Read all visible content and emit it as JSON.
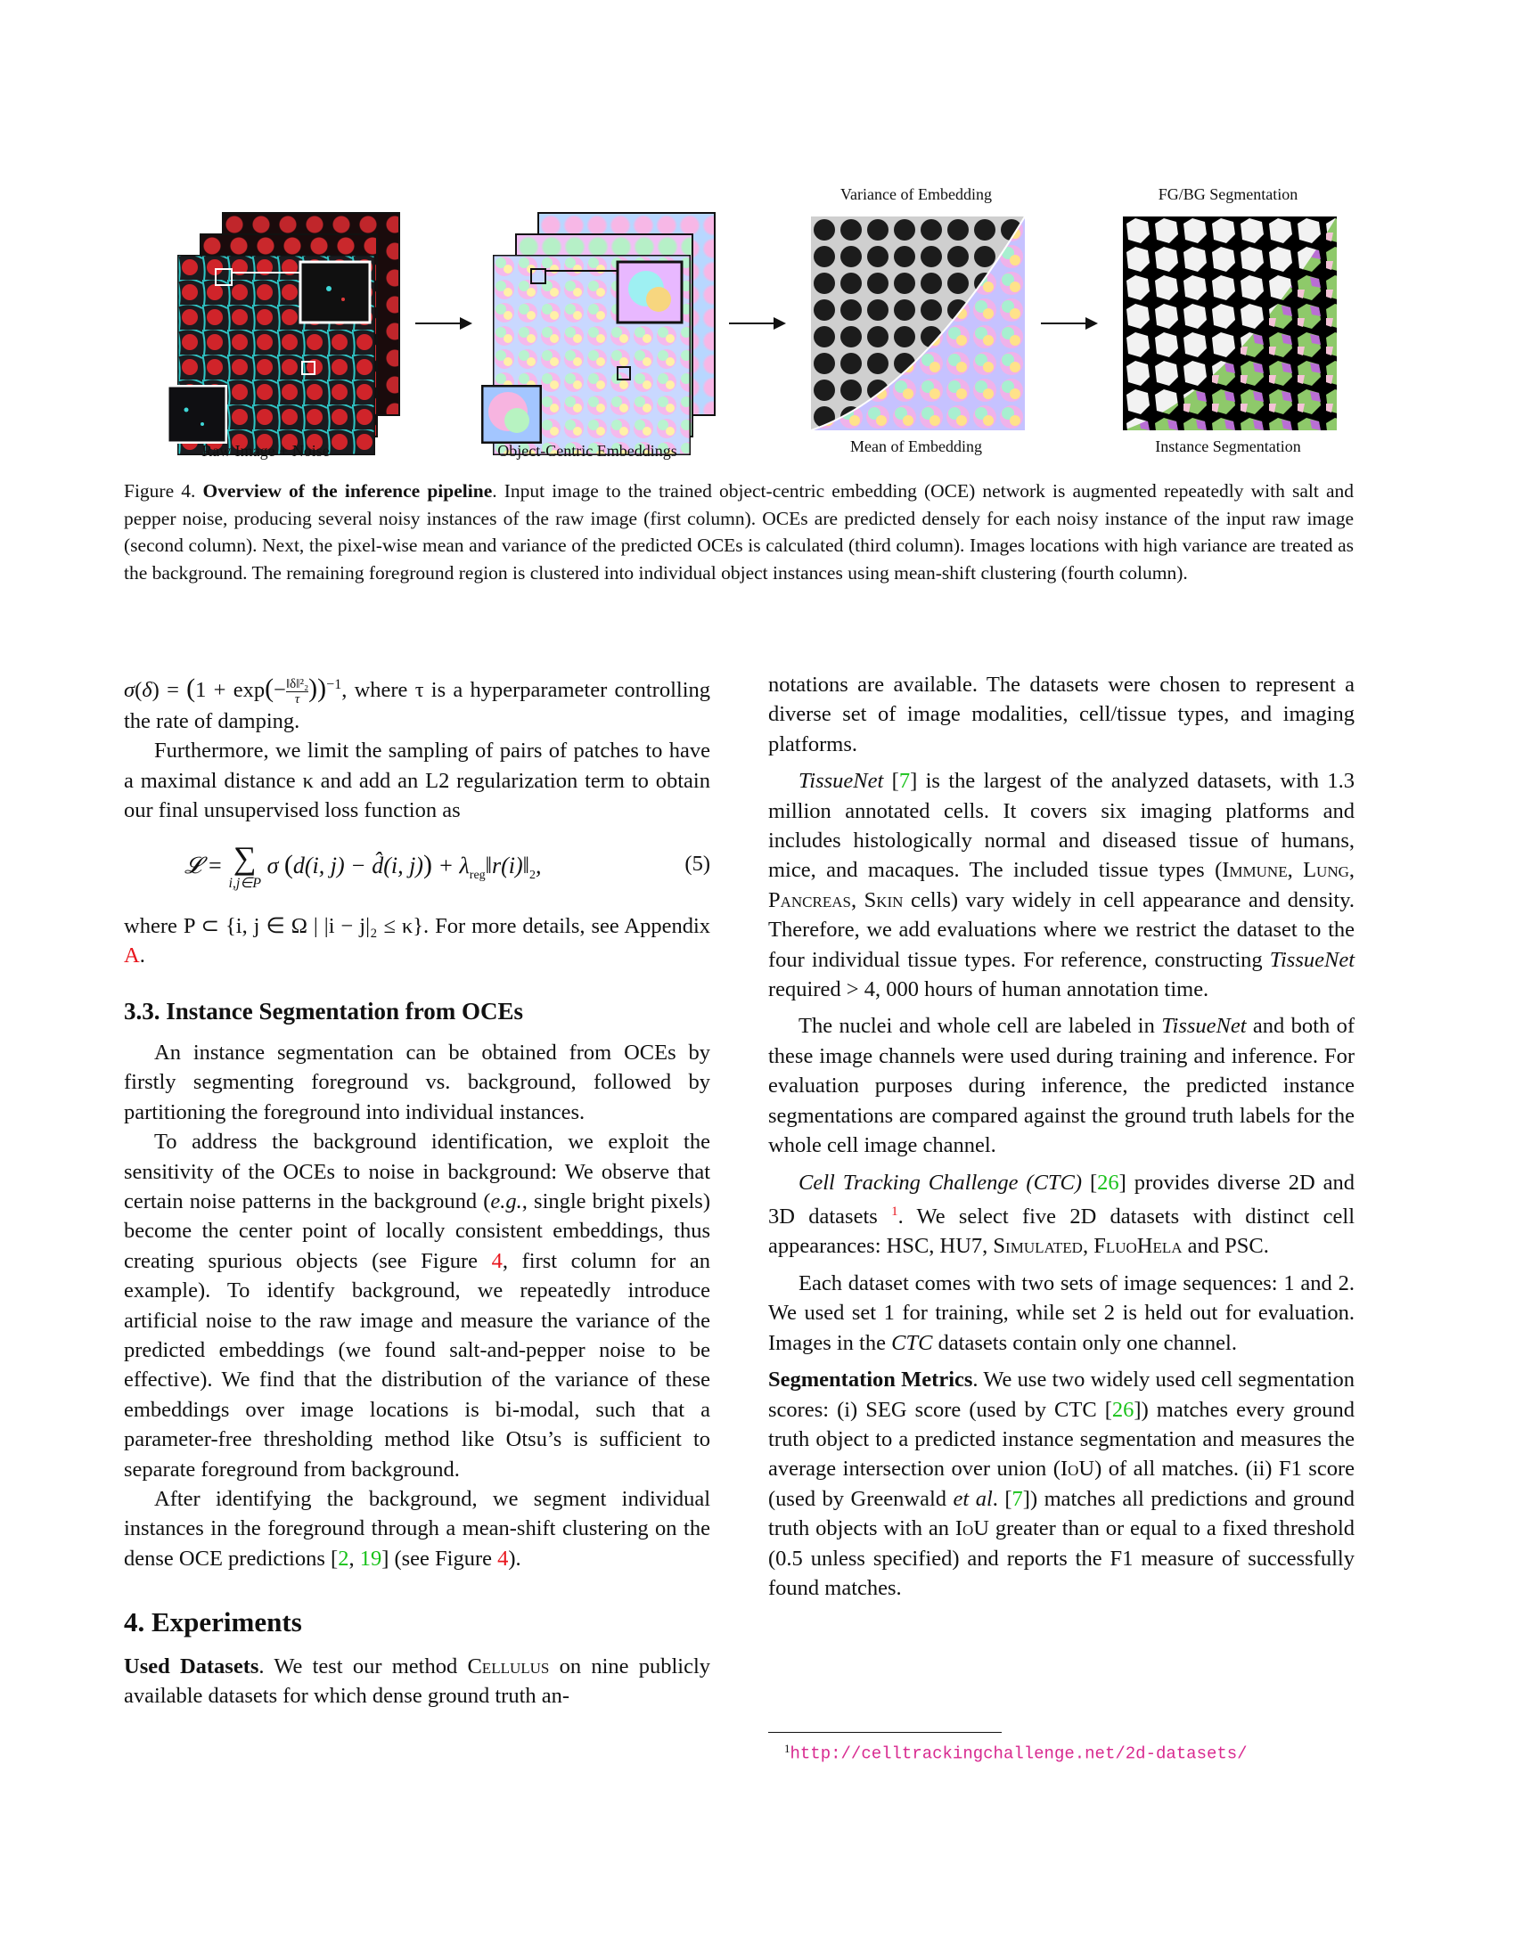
{
  "figure": {
    "labels": {
      "raw": "Raw Image + Noise",
      "oce": "Object-Centric Embeddings",
      "variance": "Variance of Embedding",
      "mean": "Mean of Embedding",
      "fgbg": "FG/BG Segmentation",
      "instance": "Instance Segmentation"
    },
    "caption_prefix": "Figure 4.",
    "caption_title": "Overview of the inference pipeline",
    "caption_text": ". Input image to the trained object-centric embedding (OCE) network is augmented repeatedly with salt and pepper noise, producing several noisy instances of the raw image (first column). OCEs are predicted densely for each noisy instance of the input raw image (second column). Next, the pixel-wise mean and variance of the predicted OCEs is calculated (third column). Images locations with high variance are treated as the background. The remaining foreground region is clustered into individual object instances using mean-shift clustering (fourth column)."
  },
  "left": {
    "sigma_tail": ", where τ is a hyperparameter controlling the rate of damping.",
    "p1": "Furthermore, we limit the sampling of pairs of patches to have a maximal distance κ and add an L2 regularization term to obtain our final unsupervised loss function as",
    "eq_number": "(5)",
    "where_text": "where P ⊂ {i, j ∈ Ω | |i − j|₂ ≤ κ}. For more details, see Appendix",
    "appendix_ref": "A",
    "h_33": "3.3. Instance Segmentation from OCEs",
    "p2": "An instance segmentation can be obtained from OCEs by firstly segmenting foreground vs. background, followed by partitioning the foreground into individual instances.",
    "p3a": "To address the background identification, we exploit the sensitivity of the OCEs to noise in background: We observe that certain noise patterns in the background (",
    "p3_eg": "e.g.",
    "p3b": ", single bright pixels) become the center point of locally consistent embeddings, thus creating spurious objects (see Figure",
    "p3_ref": "4",
    "p3c": ", first column for an example). To identify background, we repeatedly introduce artificial noise to the raw image and measure the variance of the predicted embeddings (we found salt-and-pepper noise to be effective). We find that the distribution of the variance of these embeddings over image locations is bi-modal, such that a parameter-free thresholding method like Otsu’s is sufficient to separate foreground from background.",
    "p4a": "After identifying the background, we segment individual instances in the foreground through a mean-shift clustering on the dense OCE predictions [",
    "p4_ref1": "2",
    "p4_ref2": "19",
    "p4b": "] (see Figure",
    "p4_ref3": "4",
    "p4c": ").",
    "h_4": "4. Experiments",
    "p5_bold": "Used Datasets",
    "p5a": ". We test our method",
    "p5_sc": "Cellulus",
    "p5b": "on nine publicly available datasets for which dense ground truth an-"
  },
  "right": {
    "p1": "notations are available. The datasets were chosen to represent a diverse set of image modalities, cell/tissue types, and imaging platforms.",
    "p2_it": "TissueNet",
    "p2_ref": "7",
    "p2a": "is the largest of the analyzed datasets, with 1.3 million annotated cells. It covers six imaging platforms and includes histologically normal and diseased tissue of humans, mice, and macaques. The included tissue types (",
    "p2_types": "Immune, Lung, Pancreas, Skin",
    "p2b": "cells) vary widely in cell appearance and density. Therefore, we add evaluations where we restrict the dataset to the four individual tissue types. For reference, constructing",
    "p2_it2": "TissueNet",
    "p2c": "required > 4, 000 hours of human annotation time.",
    "p3a": "The nuclei and whole cell are labeled in",
    "p3_it": "TissueNet",
    "p3b": "and both of these image channels were used during training and inference. For evaluation purposes during inference, the predicted instance segmentations are compared against the ground truth labels for the whole cell image channel.",
    "p4_it": "Cell Tracking Challenge (CTC)",
    "p4_ref": "26",
    "p4a": "provides diverse 2D and 3D datasets",
    "p4_fn": "1",
    "p4b": ". We select five 2D datasets with distinct cell appearances: HSC, HU7,",
    "p4_sc1": "Simulated",
    "p4_sc2": "FluoHela",
    "p4c": "and PSC.",
    "p5a": "Each dataset comes with two sets of image sequences: 1 and 2. We used set 1 for training, while set 2 is held out for evaluation. Images in the",
    "p5_it": "CTC",
    "p5b": "datasets contain only one channel.",
    "p6_bold": "Segmentation Metrics",
    "p6a": ". We use two widely used cell segmentation scores: (i) SEG score (used by CTC [",
    "p6_ref1": "26",
    "p6b": "]) matches every ground truth object to a predicted instance segmentation and measures the average intersection over union (",
    "p6_iou": "IoU",
    "p6c": ") of all matches. (ii) F1 score (used by Greenwald",
    "p6_etal": "et al",
    "p6d": ". [",
    "p6_ref2": "7",
    "p6e": "]) matches all predictions and ground truth objects with an",
    "p6_iou2": "IoU",
    "p6f": "greater than or equal to a fixed threshold (0.5 unless specified) and reports the F1 measure of successfully found matches.",
    "footnote_num": "1",
    "footnote_url": "http://celltrackingchallenge.net/2d-datasets/"
  }
}
